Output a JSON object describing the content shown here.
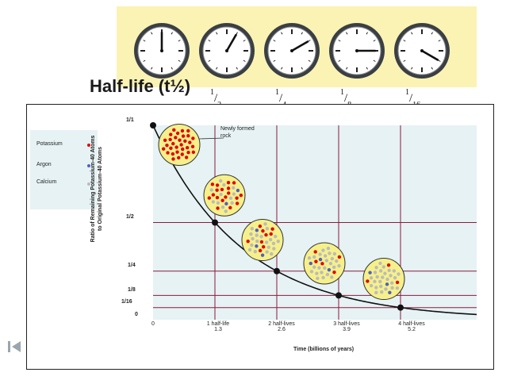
{
  "slide": {
    "title": "Half-life (t½)",
    "fractions": [
      {
        "num": "1",
        "den": "2"
      },
      {
        "num": "1",
        "den": "4"
      },
      {
        "num": "1",
        "den": "8"
      },
      {
        "num": "1",
        "den": "16"
      }
    ],
    "clocks": [
      {
        "minute_angle": 0
      },
      {
        "minute_angle": 30
      },
      {
        "minute_angle": 60
      },
      {
        "minute_angle": 90
      },
      {
        "minute_angle": 120
      }
    ],
    "colors": {
      "band": "#fbf3b4",
      "plot_bg": "#e6f2f4",
      "grid": "#8b1a3a",
      "curve": "#111111",
      "potassium": "#e30000",
      "argon": "#5060c0",
      "calcium": "#bbbbbb",
      "rock": "#f6f08a"
    }
  },
  "legend": {
    "items": [
      {
        "label": "Potassium",
        "color": "#e30000"
      },
      {
        "label": "Argon",
        "color": "#5060c0"
      },
      {
        "label": "Calcium",
        "color": "#bbbbbb"
      }
    ]
  },
  "chart_data": {
    "type": "line",
    "ylabel_line1": "Ratio of Remaining Potassium-40 Atoms",
    "ylabel_line2": "to Original Potassium-40 Atoms",
    "xlabel": "Time (billions of years)",
    "y_tick_labels": [
      "1/1",
      "1/2",
      "1/4",
      "1/8",
      "1/16",
      "0"
    ],
    "y_tick_values": [
      1,
      0.5,
      0.25,
      0.125,
      0.0625,
      0
    ],
    "x_ticks": [
      {
        "line1": "0",
        "line2": "",
        "x": 0
      },
      {
        "line1": "1 half-life",
        "line2": "1.3",
        "x": 1.3
      },
      {
        "line1": "2 half-lives",
        "line2": "2.6",
        "x": 2.6
      },
      {
        "line1": "3 half-lives",
        "line2": "3.9",
        "x": 3.9
      },
      {
        "line1": "4 half-lives",
        "line2": "5.2",
        "x": 5.2
      }
    ],
    "points": [
      {
        "x": 0,
        "y": 1
      },
      {
        "x": 1.3,
        "y": 0.5
      },
      {
        "x": 2.6,
        "y": 0.25
      },
      {
        "x": 3.9,
        "y": 0.125
      },
      {
        "x": 5.2,
        "y": 0.0625
      }
    ],
    "xlim": [
      0,
      6.8
    ],
    "ylim": [
      0,
      1
    ],
    "half_life_billion_years": 1.3,
    "annotation": {
      "line1": "Newly formed",
      "line2": "rock"
    },
    "rock_samples": [
      {
        "x": 0.55,
        "y": 0.9,
        "potassium": 32,
        "argon": 0,
        "calcium": 0
      },
      {
        "x": 1.5,
        "y": 0.64,
        "potassium": 18,
        "argon": 2,
        "calcium": 12
      },
      {
        "x": 2.3,
        "y": 0.41,
        "potassium": 9,
        "argon": 3,
        "calcium": 20
      },
      {
        "x": 3.6,
        "y": 0.29,
        "potassium": 5,
        "argon": 3,
        "calcium": 24
      },
      {
        "x": 4.85,
        "y": 0.21,
        "potassium": 3,
        "argon": 3,
        "calcium": 26
      }
    ],
    "grid": true
  }
}
